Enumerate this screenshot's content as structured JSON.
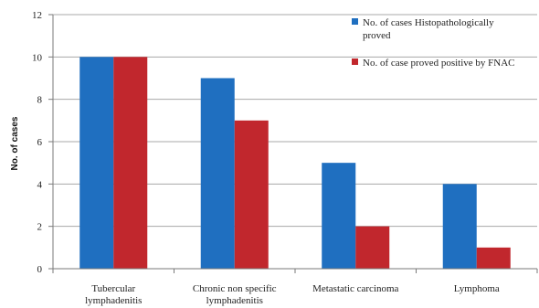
{
  "chart_data": {
    "type": "bar",
    "categories": [
      [
        "Tubercular",
        "lymphadenitis"
      ],
      [
        "Chronic non specific",
        "lymphadenitis"
      ],
      [
        "Metastatic carcinoma"
      ],
      [
        "Lymphoma"
      ]
    ],
    "series": [
      {
        "name": [
          "No. of cases Histopathologically",
          "proved"
        ],
        "values": [
          10,
          9,
          5,
          4
        ],
        "color": "#1f6fc0"
      },
      {
        "name": [
          "No. of case proved positive by FNAC"
        ],
        "values": [
          10,
          7,
          2,
          1
        ],
        "color": "#c1272d"
      }
    ],
    "ylabel": "No. of cases",
    "ylim": [
      0,
      12
    ],
    "yticks": [
      0,
      2,
      4,
      6,
      8,
      10,
      12
    ],
    "grid": true,
    "legend": "top-right"
  }
}
